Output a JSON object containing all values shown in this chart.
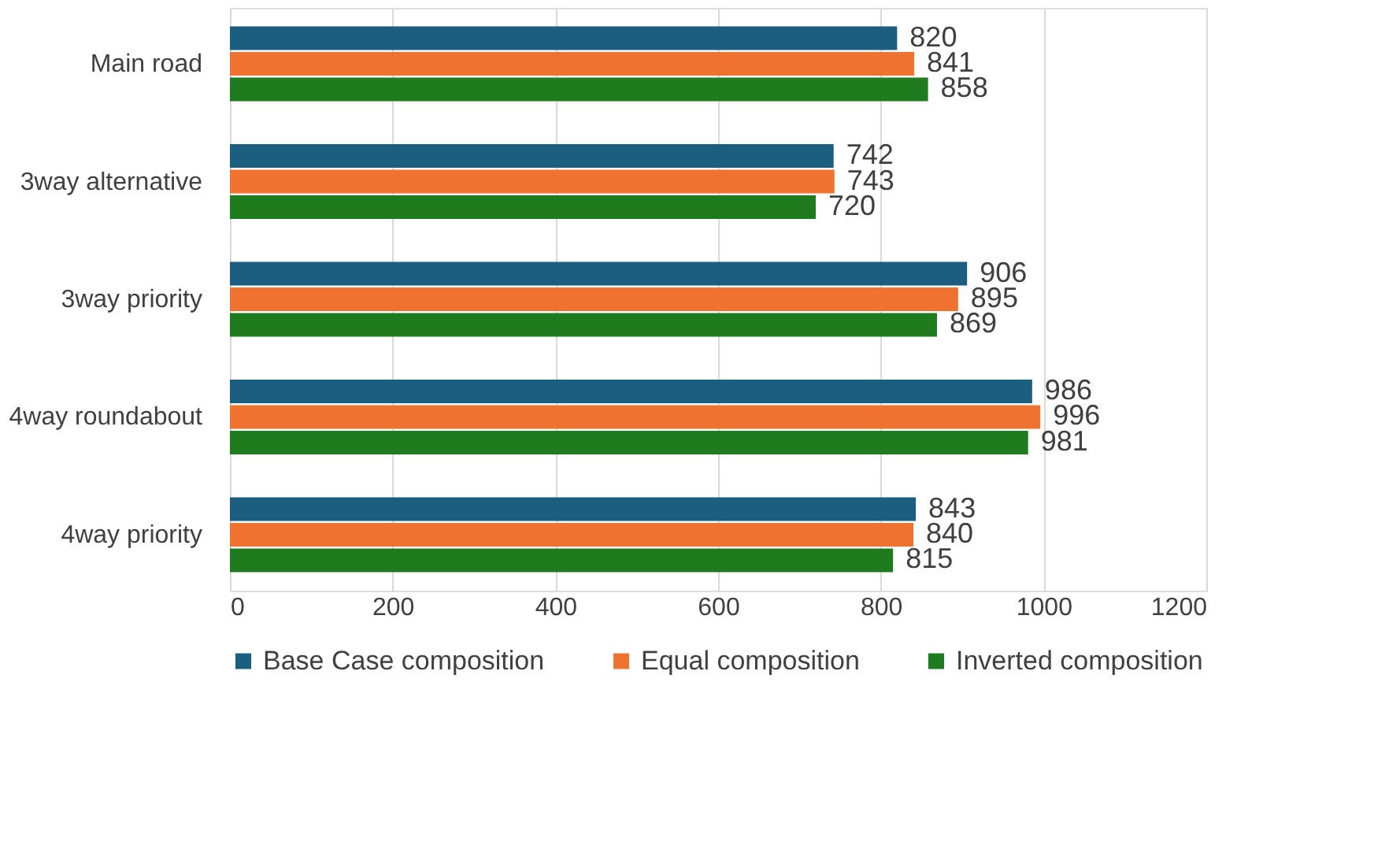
{
  "chart_data": {
    "type": "bar",
    "orientation": "horizontal",
    "categories": [
      "Main road",
      "3way alternative",
      "3way priority",
      "4way roundabout",
      "4way priority"
    ],
    "series": [
      {
        "name": "Base Case composition",
        "color": "#1b5e80",
        "values": [
          820,
          742,
          906,
          986,
          843
        ]
      },
      {
        "name": "Equal composition",
        "color": "#ee7230",
        "values": [
          841,
          743,
          895,
          996,
          840
        ]
      },
      {
        "name": "Inverted composition",
        "color": "#1e7b1e",
        "values": [
          858,
          720,
          869,
          981,
          815
        ]
      }
    ],
    "xlim": [
      0,
      1200
    ],
    "xticks": [
      0,
      200,
      400,
      600,
      800,
      1000,
      1200
    ],
    "grid": "x",
    "legend": "bottom",
    "data_labels": true
  }
}
